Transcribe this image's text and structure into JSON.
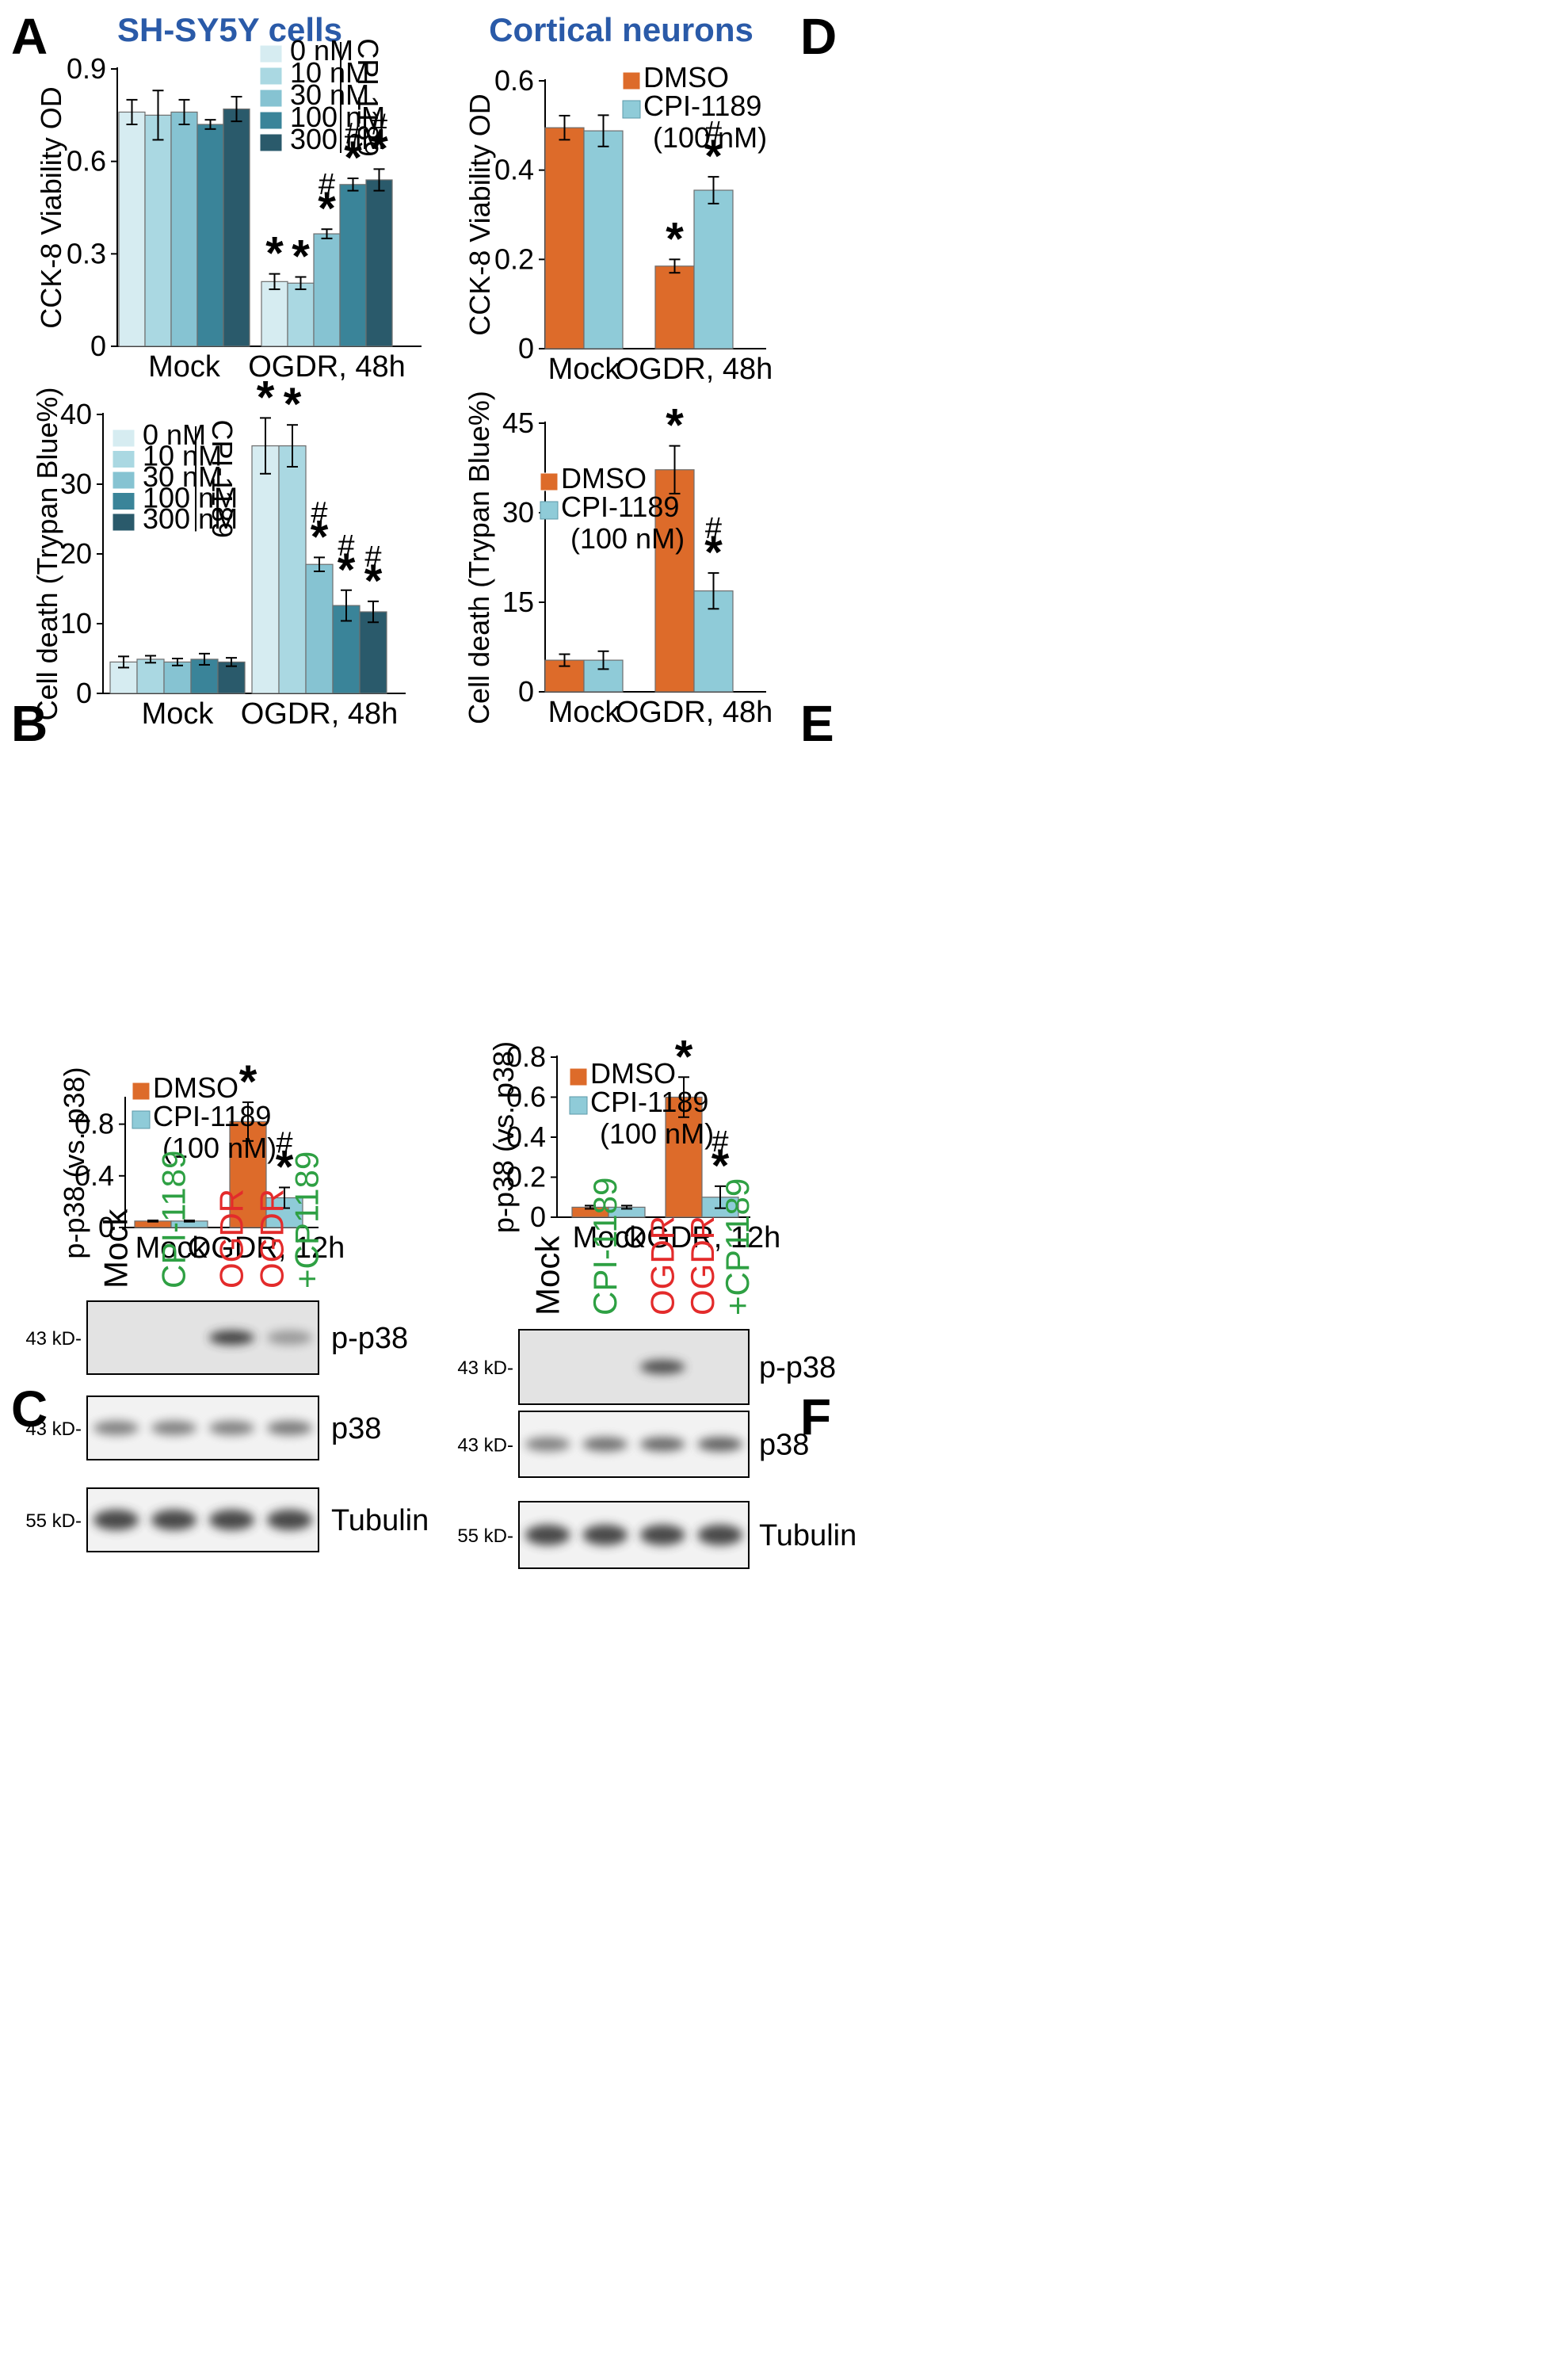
{
  "panel_labels": [
    "A",
    "B",
    "C",
    "D",
    "E",
    "F"
  ],
  "colors": {
    "conc": [
      "#d6ecf1",
      "#aad8e2",
      "#86c3d2",
      "#3a8499",
      "#2a5a6b"
    ],
    "dmso": "#dd6b2a",
    "cpi": "#8fcbd8",
    "title": "#2a5aa8",
    "green": "#2ea043",
    "red": "#e32b2b"
  },
  "chart_data": [
    {
      "panel": "A",
      "type": "bar",
      "title": "SH-SY5Y cells",
      "ylabel": "CCK-8 Viability OD",
      "categories": [
        "Mock",
        "OGDR, 48h"
      ],
      "ylim": [
        0,
        0.9
      ],
      "yticks": [
        "0",
        "0.3",
        "0.6",
        "0.9"
      ],
      "legend_title": "CPI-1189",
      "series": [
        {
          "name": "0 nM",
          "values": [
            0.76,
            0.21
          ],
          "errors": [
            0.04,
            0.025
          ],
          "marks": [
            "",
            "*"
          ]
        },
        {
          "name": "10 nM",
          "values": [
            0.75,
            0.205
          ],
          "errors": [
            0.08,
            0.02
          ],
          "marks": [
            "",
            "*"
          ]
        },
        {
          "name": "30 nM",
          "values": [
            0.76,
            0.365
          ],
          "errors": [
            0.04,
            0.015
          ],
          "marks": [
            "",
            "*#"
          ]
        },
        {
          "name": "100 nM",
          "values": [
            0.72,
            0.525
          ],
          "errors": [
            0.015,
            0.02
          ],
          "marks": [
            "",
            "*#"
          ]
        },
        {
          "name": "300 nM",
          "values": [
            0.77,
            0.54
          ],
          "errors": [
            0.04,
            0.035
          ],
          "marks": [
            "",
            "*#"
          ]
        }
      ]
    },
    {
      "panel": "B",
      "type": "bar",
      "title": "",
      "ylabel": "Cell death (Trypan Blue%)",
      "categories": [
        "Mock",
        "OGDR, 48h"
      ],
      "ylim": [
        0,
        40
      ],
      "yticks": [
        "0",
        "10",
        "20",
        "30",
        "40"
      ],
      "legend_title": "CPI-1189",
      "series": [
        {
          "name": "0 nM",
          "values": [
            4.5,
            35.5
          ],
          "errors": [
            0.8,
            4.0
          ],
          "marks": [
            "",
            "*"
          ]
        },
        {
          "name": "10 nM",
          "values": [
            4.9,
            35.5
          ],
          "errors": [
            0.5,
            3.0
          ],
          "marks": [
            "",
            "*"
          ]
        },
        {
          "name": "30 nM",
          "values": [
            4.5,
            18.5
          ],
          "errors": [
            0.5,
            1.0
          ],
          "marks": [
            "",
            "*#"
          ]
        },
        {
          "name": "100 nM",
          "values": [
            4.9,
            12.6
          ],
          "errors": [
            0.8,
            2.2
          ],
          "marks": [
            "",
            "*#"
          ]
        },
        {
          "name": "300 nM",
          "values": [
            4.5,
            11.7
          ],
          "errors": [
            0.6,
            1.5
          ],
          "marks": [
            "",
            "*#"
          ]
        }
      ]
    },
    {
      "panel": "C",
      "type": "bar",
      "title": "",
      "ylabel": "p-p38 (vs. p38)",
      "categories": [
        "Mock",
        "OGDR, 12h"
      ],
      "ylim": [
        0,
        1.0
      ],
      "yticks": [
        "0",
        "0.4",
        "0.8"
      ],
      "series": [
        {
          "name": "DMSO",
          "values": [
            0.05,
            0.82
          ],
          "errors": [
            0.005,
            0.15
          ],
          "marks": [
            "",
            "*"
          ]
        },
        {
          "name": "CPI-1189 (100 nM)",
          "values": [
            0.05,
            0.23
          ],
          "errors": [
            0.005,
            0.08
          ],
          "marks": [
            "",
            "*#"
          ]
        }
      ]
    },
    {
      "panel": "D",
      "type": "bar",
      "title": "Cortical neurons",
      "ylabel": "CCK-8 Viability OD",
      "categories": [
        "Mock",
        "OGDR, 48h"
      ],
      "ylim": [
        0,
        0.6
      ],
      "yticks": [
        "0",
        "0.2",
        "0.4",
        "0.6"
      ],
      "series": [
        {
          "name": "DMSO",
          "values": [
            0.495,
            0.185
          ],
          "errors": [
            0.027,
            0.015
          ],
          "marks": [
            "",
            "*"
          ]
        },
        {
          "name": "CPI-1189 (100 nM)",
          "values": [
            0.488,
            0.355
          ],
          "errors": [
            0.035,
            0.03
          ],
          "marks": [
            "",
            "*#"
          ]
        }
      ]
    },
    {
      "panel": "E",
      "type": "bar",
      "title": "",
      "ylabel": "Cell death (Trypan Blue%)",
      "categories": [
        "Mock",
        "OGDR, 48h"
      ],
      "ylim": [
        0,
        45
      ],
      "yticks": [
        "0",
        "15",
        "30",
        "45"
      ],
      "series": [
        {
          "name": "DMSO",
          "values": [
            5.3,
            37.2
          ],
          "errors": [
            1.0,
            4.0
          ],
          "marks": [
            "",
            "*"
          ]
        },
        {
          "name": "CPI-1189 (100 nM)",
          "values": [
            5.3,
            16.9
          ],
          "errors": [
            1.5,
            3.0
          ],
          "marks": [
            "",
            "*#"
          ]
        }
      ]
    },
    {
      "panel": "F",
      "type": "bar",
      "title": "",
      "ylabel": "p-p38 (vs. p38)",
      "categories": [
        "Mock",
        "OGDR, 12h"
      ],
      "ylim": [
        0,
        0.8
      ],
      "yticks": [
        "0",
        "0.2",
        "0.4",
        "0.6",
        "0.8"
      ],
      "series": [
        {
          "name": "DMSO",
          "values": [
            0.05,
            0.6
          ],
          "errors": [
            0.008,
            0.1
          ],
          "marks": [
            "",
            "*"
          ]
        },
        {
          "name": "CPI-1189 (100 nM)",
          "values": [
            0.05,
            0.1
          ],
          "errors": [
            0.008,
            0.055
          ],
          "marks": [
            "",
            "*#"
          ]
        }
      ]
    }
  ],
  "blots": [
    {
      "panel": "C",
      "lanes": [
        {
          "lines": [
            "Mock"
          ],
          "colors": [
            "black"
          ]
        },
        {
          "lines": [
            "CPI-1189"
          ],
          "colors": [
            "green"
          ]
        },
        {
          "lines": [
            "OGDR"
          ],
          "colors": [
            "red"
          ]
        },
        {
          "lines": [
            "OGDR",
            "+CP1189"
          ],
          "colors": [
            "red",
            "green"
          ]
        }
      ],
      "rows": [
        {
          "marker": "43 kD-",
          "label": "p-p38",
          "intensity": [
            0.03,
            0.04,
            0.85,
            0.3
          ]
        },
        {
          "marker": "43 kD-",
          "label": "p38",
          "intensity": [
            0.45,
            0.45,
            0.45,
            0.5
          ]
        },
        {
          "marker": "55 kD-",
          "label": "Tubulin",
          "intensity": [
            0.8,
            0.8,
            0.8,
            0.8
          ]
        }
      ]
    },
    {
      "panel": "F",
      "lanes": [
        {
          "lines": [
            "Mock"
          ],
          "colors": [
            "black"
          ]
        },
        {
          "lines": [
            "CPI-1189"
          ],
          "colors": [
            "green"
          ]
        },
        {
          "lines": [
            "OGDR"
          ],
          "colors": [
            "red"
          ]
        },
        {
          "lines": [
            "OGDR",
            "+CP1189"
          ],
          "colors": [
            "red",
            "green"
          ]
        }
      ],
      "rows": [
        {
          "marker": "43 kD-",
          "label": "p-p38",
          "intensity": [
            0.03,
            0.04,
            0.75,
            0.03
          ]
        },
        {
          "marker": "43 kD-",
          "label": "p38",
          "intensity": [
            0.45,
            0.55,
            0.6,
            0.65
          ]
        },
        {
          "marker": "55 kD-",
          "label": "Tubulin",
          "intensity": [
            0.8,
            0.8,
            0.8,
            0.8
          ]
        }
      ]
    }
  ]
}
